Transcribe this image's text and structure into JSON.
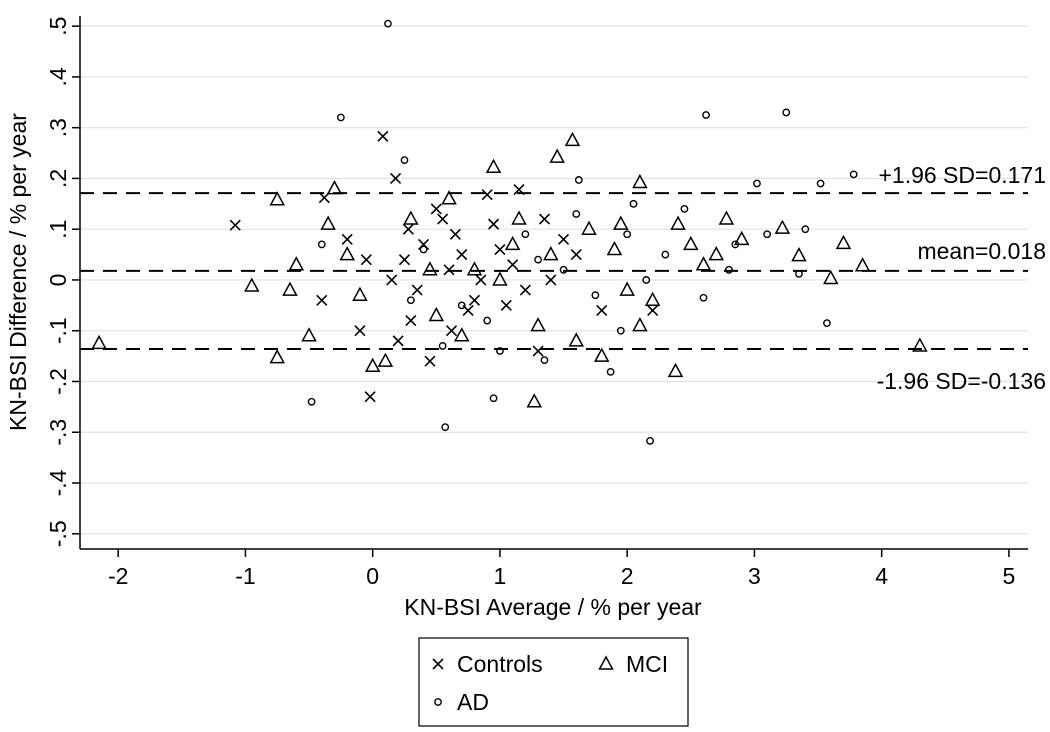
{
  "chart_data": {
    "type": "scatter",
    "title": "",
    "xlabel": "KN-BSI Average / % per year",
    "ylabel": "KN-BSI Difference / % per year",
    "xlim": [
      -2.3,
      5.15
    ],
    "ylim": [
      -0.53,
      0.52
    ],
    "xticks": [
      -2,
      -1,
      0,
      1,
      2,
      3,
      4,
      5
    ],
    "xtick_labels": [
      "-2",
      "-1",
      "0",
      "1",
      "2",
      "3",
      "4",
      "5"
    ],
    "yticks": [
      -0.5,
      -0.4,
      -0.3,
      -0.2,
      -0.1,
      0,
      0.1,
      0.2,
      0.3,
      0.4,
      0.5
    ],
    "ytick_labels": [
      "-.5",
      "-.4",
      "-.3",
      "-.2",
      "-.1",
      "0",
      ".1",
      ".2",
      ".3",
      ".4",
      ".5"
    ],
    "grid": true,
    "legend_position": "bottom",
    "reference_lines": [
      {
        "name": "upper-limit",
        "y": 0.171,
        "label": "+1.96 SD=0.171"
      },
      {
        "name": "mean",
        "y": 0.018,
        "label": "mean=0.018"
      },
      {
        "name": "lower-limit",
        "y": -0.136,
        "label": "-1.96 SD=-0.136"
      }
    ],
    "series": [
      {
        "name": "Controls",
        "marker": "x",
        "points": [
          [
            -1.08,
            0.108
          ],
          [
            0.08,
            0.283
          ],
          [
            0.18,
            0.2
          ],
          [
            -0.38,
            0.162
          ],
          [
            1.15,
            0.178
          ],
          [
            0.9,
            0.168
          ],
          [
            -0.02,
            -0.23
          ],
          [
            0.45,
            -0.16
          ],
          [
            1.3,
            -0.14
          ],
          [
            0.28,
            0.1
          ],
          [
            0.55,
            0.12
          ],
          [
            0.7,
            0.05
          ],
          [
            -0.2,
            0.08
          ],
          [
            0.35,
            -0.02
          ],
          [
            0.62,
            -0.1
          ],
          [
            0.6,
            0.02
          ],
          [
            0.8,
            -0.04
          ],
          [
            1.0,
            0.06
          ],
          [
            1.2,
            -0.02
          ],
          [
            0.95,
            0.11
          ],
          [
            1.35,
            0.12
          ],
          [
            -0.1,
            -0.1
          ],
          [
            0.15,
            0.0
          ],
          [
            0.4,
            0.07
          ],
          [
            0.85,
            0.0
          ],
          [
            1.1,
            0.03
          ],
          [
            1.4,
            0.0
          ],
          [
            1.6,
            0.05
          ],
          [
            1.8,
            -0.06
          ],
          [
            2.2,
            -0.06
          ],
          [
            0.3,
            -0.08
          ],
          [
            0.5,
            0.14
          ],
          [
            0.75,
            -0.06
          ],
          [
            1.05,
            -0.05
          ],
          [
            -0.4,
            -0.04
          ],
          [
            -0.05,
            0.04
          ],
          [
            0.2,
            -0.12
          ],
          [
            0.65,
            0.09
          ],
          [
            1.5,
            0.08
          ],
          [
            0.25,
            0.04
          ]
        ]
      },
      {
        "name": "MCI",
        "marker": "triangle",
        "points": [
          [
            -2.15,
            -0.125
          ],
          [
            4.3,
            -0.13
          ],
          [
            -0.95,
            -0.012
          ],
          [
            -0.75,
            0.158
          ],
          [
            -0.75,
            -0.153
          ],
          [
            -0.3,
            0.18
          ],
          [
            0.95,
            0.222
          ],
          [
            1.45,
            0.242
          ],
          [
            1.57,
            0.275
          ],
          [
            2.1,
            0.192
          ],
          [
            3.7,
            0.072
          ],
          [
            3.85,
            0.028
          ],
          [
            3.6,
            0.003
          ],
          [
            1.27,
            -0.24
          ],
          [
            2.38,
            -0.18
          ],
          [
            2.2,
            -0.04
          ],
          [
            3.22,
            0.102
          ],
          [
            2.78,
            0.12
          ],
          [
            3.35,
            0.048
          ],
          [
            -0.5,
            -0.11
          ],
          [
            0.0,
            -0.17
          ],
          [
            0.1,
            -0.16
          ],
          [
            -0.6,
            0.03
          ],
          [
            -0.35,
            0.11
          ],
          [
            0.5,
            -0.07
          ],
          [
            0.8,
            0.02
          ],
          [
            1.1,
            0.07
          ],
          [
            1.3,
            -0.09
          ],
          [
            1.7,
            0.1
          ],
          [
            2.0,
            -0.02
          ],
          [
            2.4,
            0.11
          ],
          [
            2.9,
            0.08
          ],
          [
            0.3,
            0.12
          ],
          [
            0.6,
            0.16
          ],
          [
            1.9,
            0.06
          ],
          [
            2.6,
            0.03
          ],
          [
            1.6,
            -0.12
          ],
          [
            1.0,
            0.0
          ],
          [
            -0.65,
            -0.02
          ],
          [
            -0.2,
            0.05
          ],
          [
            0.7,
            -0.11
          ],
          [
            1.4,
            0.05
          ],
          [
            2.1,
            -0.09
          ],
          [
            2.5,
            0.07
          ],
          [
            1.8,
            -0.15
          ],
          [
            0.45,
            0.02
          ],
          [
            1.15,
            0.12
          ],
          [
            1.95,
            0.11
          ],
          [
            -0.1,
            -0.03
          ],
          [
            2.7,
            0.05
          ]
        ]
      },
      {
        "name": "AD",
        "marker": "circle",
        "points": [
          [
            0.12,
            0.505
          ],
          [
            -0.25,
            0.32
          ],
          [
            2.62,
            0.325
          ],
          [
            3.25,
            0.33
          ],
          [
            0.25,
            0.236
          ],
          [
            1.62,
            0.197
          ],
          [
            3.02,
            0.19
          ],
          [
            3.52,
            0.19
          ],
          [
            3.78,
            0.208
          ],
          [
            2.18,
            -0.317
          ],
          [
            0.57,
            -0.29
          ],
          [
            0.95,
            -0.233
          ],
          [
            -0.48,
            -0.24
          ],
          [
            3.57,
            -0.085
          ],
          [
            3.4,
            0.1
          ],
          [
            1.87,
            -0.181
          ],
          [
            1.35,
            -0.158
          ],
          [
            3.35,
            0.012
          ],
          [
            2.45,
            0.14
          ],
          [
            2.0,
            0.09
          ],
          [
            0.55,
            -0.13
          ],
          [
            1.0,
            -0.14
          ],
          [
            1.5,
            0.02
          ],
          [
            2.3,
            0.05
          ],
          [
            0.4,
            0.06
          ],
          [
            1.2,
            0.09
          ],
          [
            1.75,
            -0.03
          ],
          [
            2.6,
            -0.035
          ],
          [
            0.7,
            -0.05
          ],
          [
            1.3,
            0.04
          ],
          [
            2.05,
            0.15
          ],
          [
            2.85,
            0.07
          ],
          [
            -0.4,
            0.07
          ],
          [
            0.9,
            -0.08
          ],
          [
            1.6,
            0.13
          ],
          [
            2.15,
            0.0
          ],
          [
            2.8,
            0.02
          ],
          [
            3.1,
            0.09
          ],
          [
            1.95,
            -0.1
          ],
          [
            0.3,
            -0.04
          ]
        ]
      }
    ],
    "legend": {
      "items": [
        {
          "label": "Controls",
          "marker": "x"
        },
        {
          "label": "MCI",
          "marker": "triangle"
        },
        {
          "label": "AD",
          "marker": "circle"
        }
      ]
    }
  }
}
